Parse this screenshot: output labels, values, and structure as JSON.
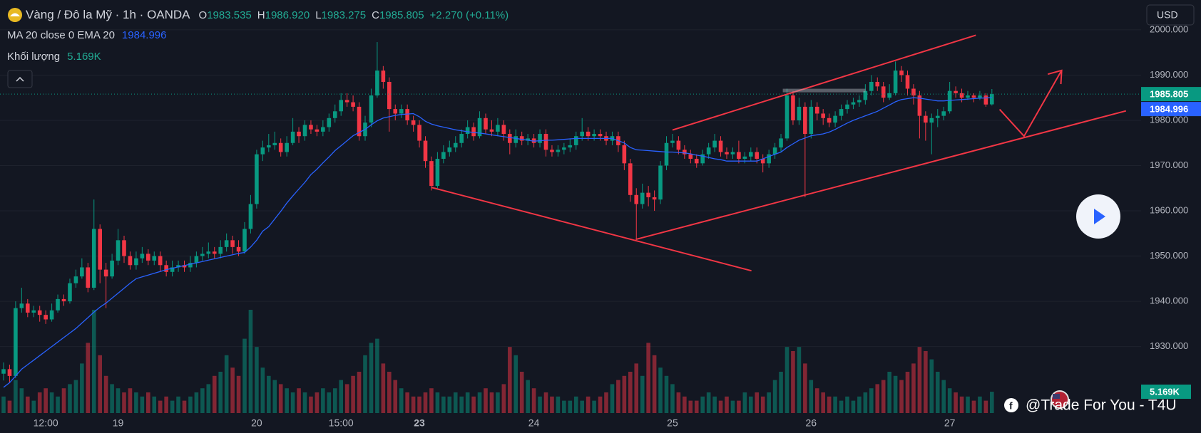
{
  "header": {
    "symbol": "Vàng / Đô la Mỹ · 1h · OANDA",
    "open_key": "O",
    "open": "1983.535",
    "high_key": "H",
    "high": "1986.920",
    "low_key": "L",
    "low": "1983.275",
    "close_key": "C",
    "close": "1985.805",
    "change": "+2.270 (+0.11%)",
    "currency": "USD",
    "watermark": "@Trade For You - T4U"
  },
  "chart_data": {
    "type": "candlestick",
    "categories": [
      null,
      null,
      null,
      null,
      null,
      null,
      null,
      "12:00",
      null,
      null,
      null,
      null,
      null,
      null,
      null,
      null,
      null,
      null,
      null,
      "19",
      null,
      null,
      null,
      null,
      null,
      null,
      null,
      null,
      null,
      null,
      null,
      null,
      null,
      null,
      null,
      null,
      null,
      null,
      null,
      null,
      null,
      null,
      "20",
      null,
      null,
      null,
      null,
      null,
      null,
      null,
      null,
      null,
      null,
      null,
      null,
      null,
      "15:00",
      null,
      null,
      null,
      null,
      null,
      null,
      null,
      null,
      null,
      null,
      null,
      null,
      "23",
      null,
      null,
      null,
      null,
      null,
      null,
      null,
      null,
      null,
      null,
      null,
      null,
      null,
      null,
      null,
      null,
      null,
      null,
      "24",
      null,
      null,
      null,
      null,
      null,
      null,
      null,
      null,
      null,
      null,
      null,
      null,
      null,
      null,
      null,
      null,
      null,
      null,
      null,
      null,
      null,
      null,
      "25",
      null,
      null,
      null,
      null,
      null,
      null,
      null,
      null,
      null,
      null,
      null,
      null,
      null,
      null,
      null,
      null,
      null,
      null,
      null,
      null,
      null,
      null,
      "26",
      null,
      null,
      null,
      null,
      null,
      null,
      null,
      null,
      null,
      null,
      null,
      null,
      null,
      null,
      null,
      null,
      null,
      null,
      null,
      null,
      null,
      null,
      "27",
      null,
      null,
      null,
      null,
      null,
      null,
      null
    ],
    "open": [
      1924,
      1925,
      1923.5,
      1938.5,
      1939.5,
      1937.5,
      1938,
      1937,
      1936,
      1938,
      1940.5,
      1940,
      1944,
      1945.5,
      1947.5,
      1943,
      1956,
      1947,
      1945.5,
      1949,
      1953.5,
      1950,
      1948,
      1949.5,
      1950.5,
      1949,
      1950,
      1948,
      1946.5,
      1947.5,
      1948,
      1947.5,
      1948.5,
      1950,
      1950.5,
      1951,
      1950.5,
      1952,
      1953.5,
      1952,
      1951,
      1956,
      1961.5,
      1972.5,
      1974,
      1974.5,
      1975,
      1973,
      1975,
      1977.5,
      1976.5,
      1979,
      1978,
      1977.5,
      1978.5,
      1980.5,
      1982,
      1984.5,
      1984,
      1983,
      1976.5,
      1979.5,
      1985.5,
      1991,
      1988.5,
      1982.5,
      1981.5,
      1982.5,
      1980,
      1979,
      1975.5,
      1971,
      1965.5,
      1971.5,
      1973,
      1974,
      1975,
      1977,
      1978.5,
      1976.5,
      1980.5,
      1978,
      1977.5,
      1979,
      1977,
      1975,
      1976.5,
      1975.5,
      1976,
      1975,
      1977,
      1973.5,
      1973,
      1973.5,
      1974,
      1974.5,
      1976.5,
      1977.5,
      1976.5,
      1977,
      1976.5,
      1975.5,
      1976.5,
      1974.5,
      1970.5,
      1963.5,
      1961.5,
      1964,
      1963,
      1962.5,
      1970,
      1975,
      1975.5,
      1973.5,
      1972.5,
      1971.5,
      1970.5,
      1972.5,
      1974,
      1975.5,
      1973,
      1972.5,
      1973,
      1971.5,
      1972,
      1973,
      1971.5,
      1970.5,
      1972.5,
      1974,
      1976,
      1985.5,
      1980,
      1983,
      1977,
      1983,
      1981.5,
      1980.5,
      1979.5,
      1981,
      1982.5,
      1983.5,
      1984,
      1984.5,
      1986.5,
      1988.5,
      1987.5,
      1985,
      1986,
      1991,
      1990,
      1987,
      1985.5,
      1981,
      1979.5,
      1980.5,
      1981,
      1982,
      1986.5,
      1986,
      1985,
      1985.5,
      1985,
      1985.5,
      1983.535
    ],
    "high": [
      1926.5,
      1926,
      1940,
      1943,
      1940.5,
      1939,
      1939,
      1938,
      1939.5,
      1941.5,
      1941.5,
      1945,
      1947,
      1949.5,
      1948.5,
      1962.5,
      1957,
      1948.5,
      1950.5,
      1956,
      1954.5,
      1951,
      1951,
      1952,
      1951.5,
      1951,
      1951,
      1949,
      1949,
      1949,
      1949,
      1950,
      1951,
      1952,
      1953,
      1952,
      1953.5,
      1955,
      1954.5,
      1953.5,
      1957.5,
      1963.5,
      1973.5,
      1975.5,
      1977,
      1977.5,
      1976,
      1976.5,
      1980.5,
      1978.5,
      1980,
      1980,
      1979,
      1980,
      1981.5,
      1983.5,
      1986,
      1986,
      1985.5,
      1984,
      1981,
      1987,
      1997.3,
      1992,
      1989.5,
      1983.5,
      1983.5,
      1983.5,
      1981,
      1980,
      1976.5,
      1972,
      1973,
      1974.5,
      1975.5,
      1976.5,
      1978,
      1980,
      1979.5,
      1982,
      1981.5,
      1980,
      1980.5,
      1980,
      1978,
      1978,
      1977.5,
      1977,
      1977,
      1978,
      1978,
      1974.5,
      1974.5,
      1975,
      1976,
      1977.5,
      1980.5,
      1978.5,
      1978,
      1978,
      1977.5,
      1977.5,
      1977.5,
      1975.5,
      1971.5,
      1965,
      1966,
      1965.5,
      1964.5,
      1971,
      1976.5,
      1977,
      1976.5,
      1974.5,
      1973.5,
      1972.5,
      1973.5,
      1975,
      1977,
      1976.5,
      1974,
      1974,
      1975.5,
      1973,
      1974,
      1974,
      1972.5,
      1973.5,
      1975,
      1977,
      1987,
      1986.5,
      1985,
      1984,
      1984.5,
      1984,
      1982.5,
      1981.5,
      1982,
      1983.5,
      1984.5,
      1985,
      1985.5,
      1988,
      1990,
      1989.5,
      1988.5,
      1988,
      1993,
      1992,
      1991,
      1988,
      1986.5,
      1982,
      1981.5,
      1982.5,
      1983,
      1988.5,
      1987.5,
      1987,
      1986.5,
      1986,
      1986.5,
      1986,
      1986.92
    ],
    "low": [
      1922.5,
      1922,
      1923,
      1937.5,
      1936.5,
      1936.5,
      1935.5,
      1935,
      1935.5,
      1937.5,
      1939,
      1939.5,
      1943,
      1945,
      1942,
      1942.5,
      1944,
      1938.5,
      1945,
      1948,
      1948.5,
      1947,
      1947,
      1948.5,
      1948,
      1948,
      1946.5,
      1945.5,
      1945.5,
      1946.5,
      1946.5,
      1946.5,
      1947.5,
      1949,
      1949.5,
      1949.5,
      1949.5,
      1951,
      1950.5,
      1950,
      1950.5,
      1955,
      1960.5,
      1971,
      1973,
      1973.5,
      1972,
      1972,
      1974.5,
      1975,
      1975.5,
      1977,
      1976.5,
      1976.5,
      1977.5,
      1979.5,
      1981,
      1983,
      1982,
      1975.5,
      1975.5,
      1978.5,
      1985,
      1987,
      1977.5,
      1980,
      1980.5,
      1979,
      1977.5,
      1974,
      1969.5,
      1964.5,
      1965,
      1970.5,
      1972,
      1973,
      1974,
      1976,
      1975.5,
      1976,
      1977,
      1976.5,
      1976.5,
      1975.5,
      1972.5,
      1974,
      1974.5,
      1974.5,
      1974,
      1974,
      1972,
      1972,
      1972,
      1972.5,
      1973,
      1973.5,
      1975.5,
      1975.5,
      1975.5,
      1975.5,
      1974.5,
      1974.5,
      1973,
      1969,
      1962,
      1953.8,
      1960.5,
      1961,
      1960,
      1961.5,
      1969,
      1974,
      1972.5,
      1971.5,
      1970.5,
      1969.5,
      1970,
      1971.5,
      1973,
      1972,
      1971.5,
      1971.5,
      1970.5,
      1970.5,
      1971,
      1970.5,
      1968.5,
      1969.5,
      1971.5,
      1973,
      1975.5,
      1979,
      1979,
      1963,
      1976,
      1980,
      1979,
      1978.5,
      1978.5,
      1980,
      1981.5,
      1982.5,
      1983,
      1983.5,
      1985.5,
      1986.5,
      1984,
      1984.5,
      1985.5,
      1988.5,
      1985.5,
      1983.5,
      1976,
      1975.5,
      1972.5,
      1978.5,
      1980,
      1981.5,
      1985,
      1984,
      1984.5,
      1984,
      1984.5,
      1983,
      1983.275
    ],
    "close": [
      1925,
      1923.5,
      1938.5,
      1939.5,
      1937.5,
      1938,
      1937,
      1936,
      1938,
      1940.5,
      1940,
      1944,
      1945.5,
      1947.5,
      1943,
      1956,
      1947,
      1945.5,
      1949,
      1953.5,
      1950,
      1948,
      1949.5,
      1950.5,
      1949,
      1950,
      1948,
      1946.5,
      1947.5,
      1948,
      1947.5,
      1948.5,
      1950,
      1950.5,
      1951,
      1950.5,
      1952,
      1953.5,
      1952,
      1951,
      1956,
      1961.5,
      1972.5,
      1974,
      1974.5,
      1975,
      1973,
      1975,
      1977.5,
      1976.5,
      1979,
      1978,
      1977.5,
      1978.5,
      1980.5,
      1982,
      1984.5,
      1984,
      1983,
      1976.5,
      1979.5,
      1985.5,
      1991,
      1988.5,
      1982.5,
      1981.5,
      1982.5,
      1980,
      1979,
      1975.5,
      1971,
      1965.5,
      1971.5,
      1973,
      1974,
      1975,
      1977,
      1978.5,
      1976.5,
      1980.5,
      1978,
      1977.5,
      1979,
      1977,
      1975,
      1976.5,
      1975.5,
      1976,
      1975,
      1977,
      1973.5,
      1973,
      1973.5,
      1974,
      1974.5,
      1976.5,
      1977.5,
      1976.5,
      1977,
      1976.5,
      1975.5,
      1976.5,
      1974.5,
      1970.5,
      1963.5,
      1961.5,
      1964,
      1963,
      1962.5,
      1970,
      1975,
      1975.5,
      1973.5,
      1972.5,
      1971.5,
      1970.5,
      1972.5,
      1974,
      1975.5,
      1973,
      1972.5,
      1973,
      1971.5,
      1972,
      1973,
      1971.5,
      1970.5,
      1972.5,
      1974,
      1976,
      1985.5,
      1980,
      1983,
      1977,
      1983,
      1981.5,
      1980.5,
      1979.5,
      1981,
      1982.5,
      1983.5,
      1984,
      1984.5,
      1986.5,
      1988.5,
      1987.5,
      1985,
      1986,
      1991,
      1990,
      1987,
      1985.5,
      1981,
      1979.5,
      1980.5,
      1981,
      1982,
      1986.5,
      1986,
      1985,
      1985.5,
      1985,
      1985.5,
      1983.5,
      1985.805
    ],
    "up_color": "#089981",
    "down_color": "#f23645",
    "ylim": [
      1915.3,
      2006.6
    ],
    "yticks": [
      {
        "value": 1930,
        "label": "1930.000"
      },
      {
        "value": 1940,
        "label": "1940.000"
      },
      {
        "value": 1950,
        "label": "1950.000"
      },
      {
        "value": 1960,
        "label": "1960.000"
      },
      {
        "value": 1970,
        "label": "1970.000"
      },
      {
        "value": 1980,
        "label": "1980.000"
      },
      {
        "value": 1990,
        "label": "1990.000"
      },
      {
        "value": 2000,
        "label": "2000.000"
      }
    ],
    "grid": true,
    "indicator": {
      "name": "MA 20 close 0 EMA 20",
      "color": "#2962ff",
      "values": [
        1921,
        1922,
        1923.5,
        1925,
        1926,
        1927,
        1928,
        1929,
        1930,
        1931,
        1932,
        1933,
        1934,
        1935.2,
        1936.4,
        1937.6,
        1938.7,
        1939.6,
        1940.7,
        1941.8,
        1942.9,
        1944,
        1945,
        1945.4,
        1945.8,
        1946.2,
        1946.6,
        1947,
        1947.3,
        1947.6,
        1947.9,
        1948.2,
        1948.5,
        1948.8,
        1949.1,
        1949.4,
        1949.7,
        1950,
        1950.3,
        1950.6,
        1950.8,
        1952,
        1953.5,
        1955.5,
        1956.5,
        1958.2,
        1959.9,
        1961.7,
        1963.3,
        1964.8,
        1966.3,
        1968,
        1969.2,
        1970.6,
        1971.9,
        1973.3,
        1974.4,
        1975.5,
        1976.6,
        1977.3,
        1978,
        1979,
        1979.9,
        1980.5,
        1980.8,
        1981.1,
        1981.3,
        1981.4,
        1981.5,
        1980.8,
        1979.8,
        1979.2,
        1978.8,
        1978.5,
        1978.2,
        1977.9,
        1977.7,
        1977.5,
        1977.3,
        1977.2,
        1977,
        1976.8,
        1976.6,
        1976.4,
        1976.2,
        1976,
        1975.8,
        1975.6,
        1975.4,
        1975.5,
        1975.6,
        1975.6,
        1975.7,
        1975.8,
        1975.9,
        1976,
        1976,
        1976,
        1976,
        1976,
        1976,
        1976,
        1975.5,
        1975,
        1974,
        1973.5,
        1973.4,
        1973.3,
        1973.2,
        1973.1,
        1973,
        1973,
        1972.9,
        1972.8,
        1972.6,
        1972.3,
        1972.1,
        1971.8,
        1971.5,
        1971.3,
        1971,
        1971,
        1971,
        1971,
        1971,
        1971,
        1971.5,
        1972,
        1972.5,
        1973,
        1974,
        1974.8,
        1975.6,
        1976.1,
        1976.6,
        1976.8,
        1977,
        1977.4,
        1978,
        1978.7,
        1979.4,
        1980,
        1980.5,
        1981,
        1981.5,
        1982,
        1982.7,
        1983.4,
        1984.1,
        1984.6,
        1984.8,
        1985,
        1984.9,
        1984.7,
        1984.5,
        1984.3,
        1984.3,
        1984.4,
        1984.5,
        1984.6,
        1984.7,
        1984.8,
        1984.9,
        1984.95,
        1984.996
      ]
    },
    "volume": {
      "name": "Khối lượng",
      "vlim": [
        0,
        30000
      ],
      "last_label": "5.169K",
      "values": [
        4000,
        3000,
        8000,
        6000,
        4000,
        3000,
        5000,
        6000,
        5000,
        4000,
        6000,
        7000,
        8000,
        12000,
        17000,
        25000,
        14000,
        9000,
        7000,
        6000,
        5000,
        6000,
        5000,
        4000,
        5000,
        4000,
        3000,
        4000,
        3000,
        4000,
        3000,
        4000,
        5000,
        6000,
        7000,
        9000,
        10000,
        14000,
        11000,
        9000,
        18000,
        25000,
        16000,
        11000,
        9000,
        8000,
        7000,
        6000,
        5000,
        6000,
        5000,
        4000,
        5000,
        6000,
        5000,
        6000,
        8000,
        7000,
        9000,
        10000,
        14000,
        17000,
        18000,
        12000,
        10000,
        8000,
        6000,
        5000,
        4000,
        4000,
        5000,
        6000,
        5000,
        4000,
        4000,
        5000,
        4000,
        5000,
        4000,
        5000,
        6000,
        5000,
        5000,
        7000,
        16000,
        14000,
        10000,
        8000,
        6000,
        4000,
        5000,
        4000,
        4000,
        3000,
        3000,
        4000,
        3000,
        4000,
        3000,
        4000,
        5000,
        7000,
        8000,
        9000,
        10000,
        12000,
        9000,
        17000,
        14000,
        11000,
        9000,
        7000,
        5000,
        4000,
        3000,
        3000,
        4000,
        5000,
        4000,
        3000,
        4000,
        3000,
        3000,
        5000,
        4000,
        5000,
        4000,
        5000,
        8000,
        10000,
        16000,
        15000,
        16000,
        12000,
        8000,
        6000,
        5000,
        4000,
        4000,
        3000,
        4000,
        3000,
        4000,
        5000,
        6000,
        7000,
        8000,
        10000,
        9000,
        8000,
        10000,
        12000,
        16000,
        15000,
        13000,
        10000,
        8000,
        6000,
        5000,
        4000,
        4000,
        3000,
        4000,
        3000,
        5169
      ]
    }
  }
}
